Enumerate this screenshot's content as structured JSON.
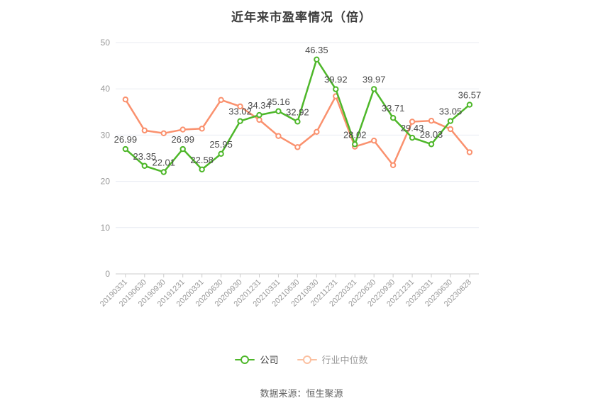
{
  "title": "近年来市盈率情况（倍）",
  "footer": "数据来源：恒生聚源",
  "colors": {
    "company_line": "#4eb72a",
    "industry_line": "#fa916e",
    "industry_legend_marker": "#fbc0a0",
    "grid": "#e8ebf2",
    "axis": "#cccccc",
    "tick_label": "#999999",
    "data_label": "#4a4a4a",
    "legend_text_company": "#333333",
    "legend_text_industry": "#999999"
  },
  "legend": [
    {
      "label": "公司",
      "marker_color": "#4eb72a",
      "text_color": "#333333"
    },
    {
      "label": "行业中位数",
      "marker_color": "#fbc0a0",
      "text_color": "#999999"
    }
  ],
  "chart_data": {
    "type": "line",
    "title": "近年来市盈率情况（倍）",
    "xlabel": "",
    "ylabel": "",
    "ylim": [
      0,
      50
    ],
    "yticks": [
      0,
      10,
      20,
      30,
      40,
      50
    ],
    "grid": true,
    "legend_position": "bottom",
    "categories": [
      "20190331",
      "20190630",
      "20190930",
      "20191231",
      "20200331",
      "20200630",
      "20200930",
      "20201231",
      "20210331",
      "20210630",
      "20210930",
      "20211231",
      "20220331",
      "20220630",
      "20220930",
      "20221231",
      "20230331",
      "20230630",
      "20230828"
    ],
    "series": [
      {
        "name": "公司",
        "color": "#4eb72a",
        "show_labels": true,
        "values": [
          26.99,
          23.35,
          22.01,
          26.99,
          22.58,
          25.95,
          33.02,
          34.34,
          35.16,
          32.92,
          46.35,
          39.92,
          28.02,
          39.97,
          33.71,
          29.43,
          28.03,
          33.05,
          36.57
        ]
      },
      {
        "name": "行业中位数",
        "color": "#fa916e",
        "show_labels": false,
        "values": [
          37.7,
          31.0,
          30.4,
          31.2,
          31.4,
          37.6,
          36.2,
          33.3,
          29.8,
          27.4,
          30.7,
          38.4,
          27.5,
          28.8,
          23.5,
          32.9,
          33.1,
          31.3,
          26.3
        ]
      }
    ]
  }
}
